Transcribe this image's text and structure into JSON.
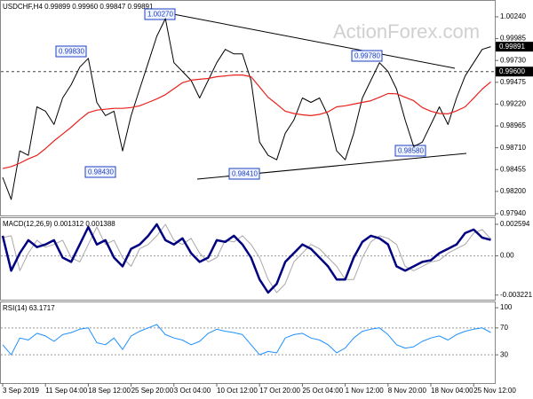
{
  "chart_data": [
    {
      "type": "line",
      "title": "USDCHF,H4  0.99899 0.99960 0.99847 0.99891",
      "watermark": "ActionForex.com",
      "ylim": [
        0.97919,
        1.00426
      ],
      "yticks": [
        {
          "value": 1.0024,
          "label": "1.00240"
        },
        {
          "value": 0.99985,
          "label": "0.99985"
        },
        {
          "value": 0.9973,
          "label": "0.99730"
        },
        {
          "value": 0.99475,
          "label": "0.99475"
        },
        {
          "value": 0.9922,
          "label": "0.99220"
        },
        {
          "value": 0.98965,
          "label": "0.98965"
        },
        {
          "value": 0.9871,
          "label": "0.98710"
        },
        {
          "value": 0.98455,
          "label": "0.98455"
        },
        {
          "value": 0.982,
          "label": "0.98200"
        },
        {
          "value": 0.9794,
          "label": "0.97940"
        }
      ],
      "series": [
        {
          "color": "#000000",
          "values": [
            0.98364,
            0.98106,
            0.98673,
            0.98621,
            0.99188,
            0.99137,
            0.98982,
            0.99292,
            0.99446,
            0.99652,
            0.99755,
            0.9924,
            0.99085,
            0.99137,
            0.98673,
            0.99085,
            0.99395,
            0.99704,
            1.00013,
            1.00219,
            0.99704,
            0.99601,
            0.99498,
            0.99292,
            0.99498,
            0.99704,
            0.99859,
            0.99807,
            0.99807,
            0.99498,
            0.98776,
            0.98621,
            0.9857,
            0.98879,
            0.99034,
            0.99292,
            0.9924,
            0.99292,
            0.99085,
            0.98673,
            0.9857,
            0.98879,
            0.99292,
            0.99498,
            0.99704,
            0.99601,
            0.99395,
            0.99034,
            0.98724,
            0.98776,
            0.98982,
            0.99188,
            0.98982,
            0.99292,
            0.99549,
            0.99704,
            0.99859,
            0.99891
          ]
        },
        {
          "color": "#e8211c",
          "values": [
            0.98467,
            0.9849,
            0.9853,
            0.9858,
            0.98621,
            0.987,
            0.9879,
            0.9887,
            0.9895,
            0.9904,
            0.9912,
            0.9915,
            0.9916,
            0.9917,
            0.9917,
            0.9918,
            0.992,
            0.9924,
            0.9928,
            0.9933,
            0.994,
            0.9947,
            0.995,
            0.9951,
            0.9952,
            0.9954,
            0.9955,
            0.9956,
            0.9956,
            0.9954,
            0.9942,
            0.993,
            0.9922,
            0.99137,
            0.9911,
            0.99095,
            0.99085,
            0.991,
            0.9913,
            0.99188,
            0.992,
            0.9922,
            0.9924,
            0.9926,
            0.993,
            0.99343,
            0.9934,
            0.993,
            0.9926,
            0.9918,
            0.99137,
            0.9911,
            0.99106,
            0.9914,
            0.99188,
            0.9929,
            0.99395,
            0.9948
          ]
        }
      ],
      "price_labels": [
        {
          "value": 0.99891,
          "label": "0.99891"
        },
        {
          "value": 0.996,
          "label": "0.99600",
          "dashed": true
        }
      ],
      "annotations": [
        "1.00270",
        "0.99830",
        "0.99780",
        "0.98430",
        "0.98410",
        "0.98580"
      ]
    },
    {
      "type": "line",
      "title": "MACD(12,26,9) 0.001312 0.001388",
      "ylim": [
        -0.0036,
        0.0031
      ],
      "yticks": [
        0.002594,
        {
          "value": 0,
          "label": "0.00"
        },
        -0.003221
      ],
      "levels": [
        0
      ],
      "series": [
        {
          "color": "#a9a9a9",
          "values": [
            0.0015,
            0.00165,
            -0.00122,
            0.00022,
            0.00129,
            0.00072,
            0.00094,
            0.00129,
            -0.00014,
            -0.0005,
            0.00094,
            0.00237,
            0.00094,
            0.00129,
            -0.00014,
            -0.00086,
            0.00058,
            0.00094,
            0.00165,
            0.00259,
            0.00129,
            0.00094,
            0.00144,
            0.00022,
            -0.0005,
            -0.00014,
            0.00129,
            0.00115,
            0.00165,
            0.00094,
            -0.00014,
            -0.00194,
            -0.00302,
            -0.0023,
            -0.0005,
            0.00022,
            0.00094,
            0.00058,
            -0.00014,
            -0.00086,
            -0.00194,
            -0.00194,
            -0.00014,
            0.00115,
            0.00165,
            0.00144,
            0.00094,
            -0.00086,
            -0.00122,
            -0.00086,
            -0.0005,
            -0.00036,
            0.00022,
            0.00058,
            0.00094,
            0.00187,
            0.00216,
            0.001388
          ]
        },
        {
          "color": "#000080",
          "values": [
            0.00165,
            -0.00122,
            0.00022,
            0.00129,
            0.00072,
            0.00094,
            0.00129,
            -0.00014,
            -0.0005,
            0.00094,
            0.00237,
            0.00094,
            0.00129,
            -0.00014,
            -0.00086,
            0.00058,
            0.00094,
            0.00165,
            0.00259,
            0.00129,
            0.00094,
            0.00144,
            0.00022,
            -0.0005,
            -0.00014,
            0.00129,
            0.00115,
            0.00165,
            0.00094,
            -0.00014,
            -0.00194,
            -0.00302,
            -0.0023,
            -0.0005,
            0.00022,
            0.00094,
            0.00058,
            -0.00014,
            -0.00086,
            -0.00194,
            -0.00194,
            -0.00014,
            0.00115,
            0.00165,
            0.00144,
            0.00094,
            -0.00086,
            -0.00122,
            -0.00086,
            -0.0005,
            -0.00036,
            0.00022,
            0.00058,
            0.00094,
            0.00187,
            0.00216,
            0.0015,
            0.001312
          ]
        }
      ]
    },
    {
      "type": "line",
      "title": "RSI(14) 63.1717",
      "ylim": [
        -12,
        108
      ],
      "yticks": [
        100,
        70,
        30
      ],
      "levels": [
        70,
        30
      ],
      "categories": [
        "3 Sep 2019",
        null,
        null,
        null,
        null,
        "11 Sep 04:00",
        null,
        null,
        null,
        null,
        "18 Sep 12:00",
        null,
        null,
        null,
        null,
        "25 Sep 20:00",
        null,
        null,
        null,
        null,
        "3 Oct 04:00",
        null,
        null,
        null,
        null,
        "10 Oct 12:00",
        null,
        null,
        null,
        null,
        "17 Oct 20:00",
        null,
        null,
        null,
        null,
        "25 Oct 04:00",
        null,
        null,
        null,
        null,
        "1 Nov 12:00",
        null,
        null,
        null,
        null,
        "8 Nov 20:00",
        null,
        null,
        null,
        null,
        "18 Nov 04:00",
        null,
        null,
        null,
        null,
        "25 Nov 12:00",
        null,
        null
      ],
      "series": [
        {
          "color": "#1e90ff",
          "values": [
            45,
            30,
            55,
            52,
            62,
            58,
            50,
            60,
            63,
            68,
            70,
            48,
            45,
            55,
            38,
            58,
            65,
            70,
            75,
            60,
            55,
            52,
            45,
            50,
            62,
            68,
            65,
            63,
            60,
            45,
            30,
            35,
            33,
            55,
            60,
            62,
            55,
            52,
            45,
            33,
            40,
            55,
            65,
            68,
            70,
            60,
            45,
            40,
            42,
            50,
            55,
            58,
            52,
            60,
            65,
            68,
            70,
            63.1717
          ]
        }
      ]
    }
  ]
}
